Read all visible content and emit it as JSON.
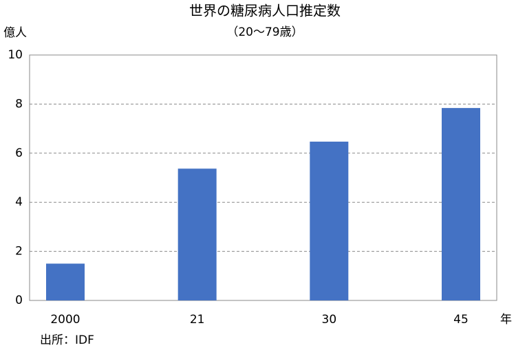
{
  "chart_data": {
    "type": "bar",
    "title": "世界の糖尿病人口推定数",
    "subtitle": "（20～79歳）",
    "y_label": "億人",
    "x_label": "年",
    "source": "出所：IDF",
    "categories": [
      "2000",
      "21",
      "30",
      "45"
    ],
    "values": [
      1.5,
      5.37,
      6.47,
      7.84
    ],
    "color": "#4472c4",
    "ylim": [
      0,
      10
    ],
    "yticks": [
      0,
      2,
      4,
      6,
      8,
      10
    ],
    "grid": true
  }
}
